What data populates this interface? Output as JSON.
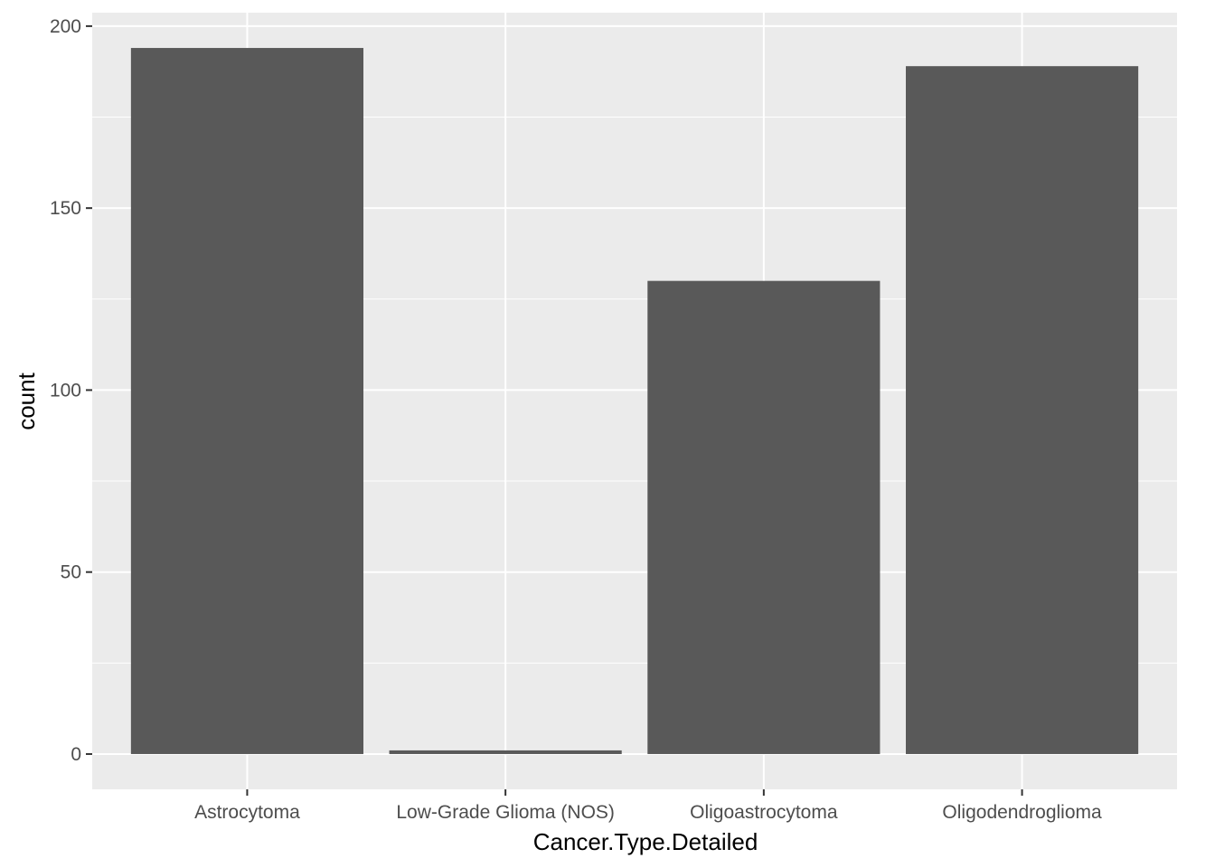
{
  "chart_data": {
    "type": "bar",
    "categories": [
      "Astrocytoma",
      "Low-Grade Glioma (NOS)",
      "Oligoastrocytoma",
      "Oligodendroglioma"
    ],
    "values": [
      194,
      1,
      130,
      189
    ],
    "title": "",
    "xlabel": "Cancer.Type.Detailed",
    "ylabel": "count",
    "ylim": [
      -9.7,
      203.7
    ],
    "yticks": [
      0,
      50,
      100,
      150,
      200
    ],
    "grid": true,
    "legend": "none",
    "colors": {
      "panel": "#ebebeb",
      "grid": "#ffffff",
      "bar": "#595959",
      "tick": "#333333",
      "tick_label": "#4d4d4d"
    }
  }
}
